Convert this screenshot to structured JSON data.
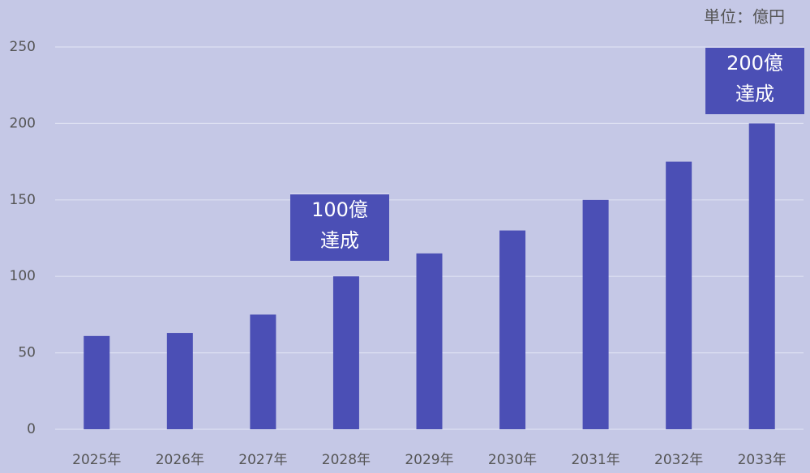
{
  "chart_data": {
    "type": "bar",
    "unit_label": "単位：億円",
    "categories": [
      "2025年",
      "2026年",
      "2027年",
      "2028年",
      "2029年",
      "2030年",
      "2031年",
      "2032年",
      "2033年"
    ],
    "values": [
      61,
      63,
      75,
      100,
      115,
      130,
      150,
      175,
      200
    ],
    "color": "#4b4fb5",
    "ylim": [
      0,
      250
    ],
    "yticks": [
      0,
      50,
      100,
      150,
      200,
      250
    ],
    "grid": true,
    "annotations": [
      {
        "lines": [
          "100億",
          "達成"
        ]
      },
      {
        "lines": [
          "200億",
          "達成"
        ]
      }
    ]
  }
}
